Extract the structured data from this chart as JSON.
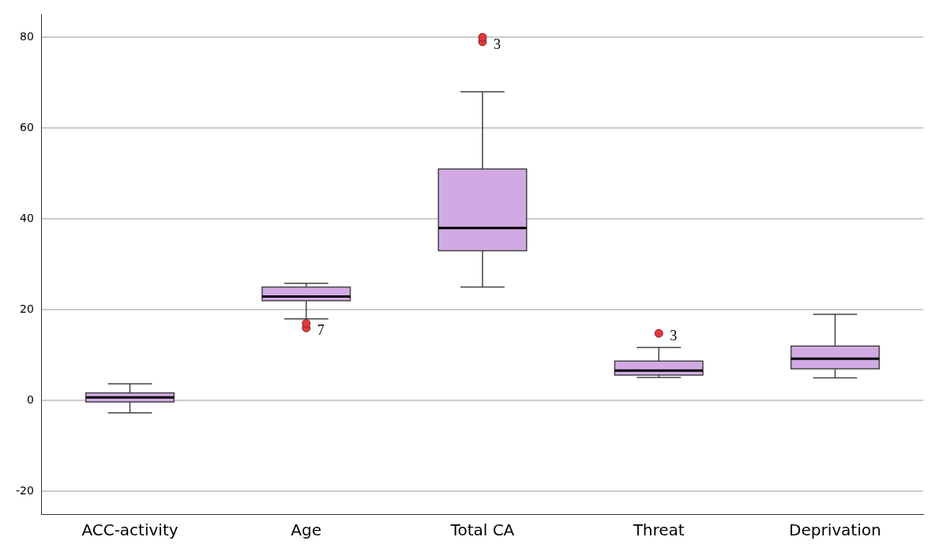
{
  "chart_data": {
    "type": "box",
    "categories": [
      "ACC-activity",
      "Age",
      "Total CA",
      "Threat",
      "Deprivation"
    ],
    "color": "#d1aae3",
    "boxes": [
      {
        "low": -2.7,
        "q1": -0.3,
        "median": 0.7,
        "q3": 1.7,
        "high": 3.7
      },
      {
        "low": 18,
        "q1": 22,
        "median": 22.9,
        "q3": 25,
        "high": 25.8
      },
      {
        "low": 25,
        "q1": 33,
        "median": 38,
        "q3": 51,
        "high": 68
      },
      {
        "low": 5.1,
        "q1": 5.6,
        "median": 6.6,
        "q3": 8.7,
        "high": 11.7
      },
      {
        "low": 5,
        "q1": 7,
        "median": 9.2,
        "q3": 12,
        "high": 19
      }
    ],
    "series": [
      {
        "type": "scatter",
        "color": "#e0393e",
        "x": [
          "Age",
          "Age",
          "Total CA",
          "Total CA",
          "Threat"
        ],
        "values": [
          17,
          16,
          80,
          79,
          14.8
        ]
      }
    ],
    "ylim": [
      -25,
      85
    ],
    "yticks": [
      -20,
      0,
      20,
      40,
      60,
      80
    ],
    "grid": "y",
    "annotations": [
      {
        "text": "3",
        "x": "Total CA",
        "y": 79
      },
      {
        "text": "7",
        "x": "Age",
        "y": 16
      },
      {
        "text": "3",
        "x": "Threat",
        "y": 14.8
      }
    ]
  }
}
